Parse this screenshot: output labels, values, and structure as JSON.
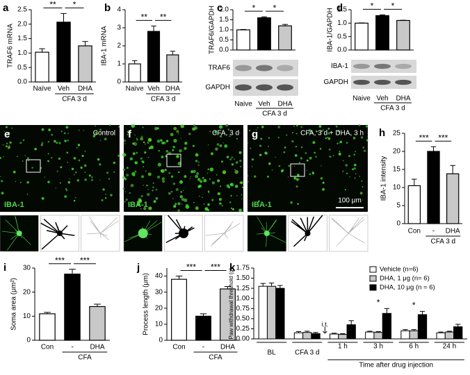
{
  "chart_data": [
    {
      "panel": "a",
      "type": "bar",
      "y_label": "TRAF6 mRNA",
      "categories": [
        "Naïve",
        "Veh",
        "DHA"
      ],
      "values": [
        1.03,
        2.07,
        1.25
      ],
      "errors": [
        0.12,
        0.3,
        0.15
      ],
      "colors": [
        "#ffffff",
        "#000000",
        "#c8c8c8"
      ],
      "ylim": [
        0,
        2.5
      ],
      "yticks": [
        {
          "value": 0,
          "label": "0.0"
        },
        0.5,
        {
          "value": 1,
          "label": "1.0"
        },
        1.5,
        {
          "value": 2,
          "label": "2.0"
        },
        2.5
      ],
      "significance": [
        "**",
        "*"
      ],
      "group_label": "CFA 3 d"
    },
    {
      "panel": "b",
      "type": "bar",
      "y_label": "IBA-1 mRNA",
      "categories": [
        "Naïve",
        "Veh",
        "DHA"
      ],
      "values": [
        1.0,
        2.8,
        1.5
      ],
      "errors": [
        0.18,
        0.3,
        0.2
      ],
      "colors": [
        "#ffffff",
        "#000000",
        "#c8c8c8"
      ],
      "ylim": [
        0,
        4
      ],
      "yticks": [
        0,
        1,
        2,
        3,
        4
      ],
      "significance": [
        "**",
        "**"
      ],
      "group_label": "CFA 3 d"
    },
    {
      "panel": "c",
      "type": "bar",
      "y_label": "TRAF6/GAPDH",
      "categories": [
        "Naive",
        "Veh",
        "DHA"
      ],
      "values": [
        1.0,
        1.6,
        1.2
      ],
      "errors": [
        0.02,
        0.05,
        0.07
      ],
      "colors": [
        "#ffffff",
        "#000000",
        "#c8c8c8"
      ],
      "ylim": [
        0,
        2
      ],
      "yticks": [
        {
          "value": 0,
          "label": "0.0"
        },
        0.5,
        {
          "value": 1,
          "label": "1.0"
        },
        1.5,
        {
          "value": 2,
          "label": "2.0"
        }
      ],
      "significance": [
        "*",
        "*"
      ],
      "group_label": "CFA 3 d",
      "blot_labels": [
        "TRAF6",
        "GAPDH"
      ]
    },
    {
      "panel": "d",
      "type": "bar",
      "y_label": "IBA-1/GAPDH",
      "categories": [
        "Naive",
        "Veh",
        "DHA"
      ],
      "values": [
        1.0,
        1.28,
        1.1
      ],
      "errors": [
        0.01,
        0.03,
        0.01
      ],
      "colors": [
        "#ffffff",
        "#000000",
        "#c8c8c8"
      ],
      "ylim": [
        0,
        1.5
      ],
      "yticks": [
        {
          "value": 0,
          "label": "0.0"
        },
        0.5,
        {
          "value": 1,
          "label": "1.0"
        },
        1.5
      ],
      "significance": [
        "*",
        "*"
      ],
      "group_label": "CFA 3 d",
      "blot_labels": [
        "IBA-1",
        "GAPDH"
      ]
    },
    {
      "panel": "h",
      "type": "bar",
      "y_label": "IBA-1 intensity",
      "categories": [
        "Con",
        "-",
        "DHA"
      ],
      "values": [
        10.5,
        20,
        13.8
      ],
      "errors": [
        1.8,
        1.3,
        2.3
      ],
      "colors": [
        "#ffffff",
        "#000000",
        "#c8c8c8"
      ],
      "ylim": [
        0,
        25
      ],
      "yticks": [
        0,
        5,
        10,
        15,
        20,
        25
      ],
      "significance": [
        "***",
        "***"
      ],
      "group_label": "CFA 3 d"
    },
    {
      "panel": "i",
      "type": "bar",
      "y_label": "Soma area (μm²)",
      "categories": [
        "Con",
        "-",
        "DHA"
      ],
      "values": [
        11,
        27.5,
        14
      ],
      "errors": [
        0.6,
        2,
        1
      ],
      "colors": [
        "#ffffff",
        "#000000",
        "#c8c8c8"
      ],
      "ylim": [
        0,
        30
      ],
      "yticks": [
        0,
        10,
        20,
        30
      ],
      "significance": [
        "***",
        "***"
      ],
      "group_label": "CFA"
    },
    {
      "panel": "j",
      "type": "bar",
      "y_label": "Process length (μm)",
      "categories": [
        "Con",
        "-",
        "DHA"
      ],
      "values": [
        38,
        15,
        32
      ],
      "errors": [
        2,
        1.5,
        1.5
      ],
      "colors": [
        "#ffffff",
        "#000000",
        "#c8c8c8"
      ],
      "ylim": [
        0,
        45
      ],
      "yticks": [
        0,
        10,
        20,
        30,
        40
      ],
      "significance": [
        "***",
        "***"
      ],
      "group_label": "CFA"
    },
    {
      "panel": "k",
      "type": "grouped_bar",
      "y_label": "Paw withdrawal threshold (g)",
      "x_label": "Time after drug injection",
      "note": "i.t.",
      "categories": [
        "BL",
        "CFA 3 d",
        "1 h",
        "3 h",
        "6 h",
        "24 h"
      ],
      "series": [
        {
          "name": "Vehicle (n=6)",
          "color": "#ffffff",
          "values": [
            1.3,
            0.15,
            0.12,
            0.17,
            0.2,
            0.15
          ],
          "errors": [
            0.07,
            0.03,
            0.02,
            0.02,
            0.03,
            0.02
          ]
        },
        {
          "name": "DHA, 1 μg (n= 6)",
          "color": "#c8c8c8",
          "values": [
            1.3,
            0.16,
            0.11,
            0.16,
            0.2,
            0.17
          ],
          "errors": [
            0.08,
            0.03,
            0.02,
            0.02,
            0.03,
            0.02
          ]
        },
        {
          "name": "DHA, 10 μg (n = 6)",
          "color": "#000000",
          "values": [
            1.25,
            0.13,
            0.35,
            0.63,
            0.6,
            0.3
          ],
          "errors": [
            0.07,
            0.03,
            0.1,
            0.12,
            0.08,
            0.06
          ],
          "annotations": [
            null,
            null,
            null,
            "*",
            "*",
            null
          ]
        }
      ],
      "ylim": [
        0,
        1.75
      ],
      "yticks": [
        {
          "value": 0,
          "label": "0.00"
        },
        0.25,
        {
          "value": 0.5,
          "label": "0.50"
        },
        0.75,
        {
          "value": 1,
          "label": "1.00"
        },
        1.25,
        {
          "value": 1.5,
          "label": "1.50"
        },
        1.75
      ]
    }
  ],
  "micrographs": [
    {
      "panel": "e",
      "caption": "Control",
      "stain": "IBA-1"
    },
    {
      "panel": "f",
      "caption": "CFA, 3 d",
      "stain": "IBA-1"
    },
    {
      "panel": "g",
      "caption": "CFA, 3 d + DHA, 3 h",
      "stain": "IBA-1",
      "scale_bar": "100 μm"
    }
  ]
}
